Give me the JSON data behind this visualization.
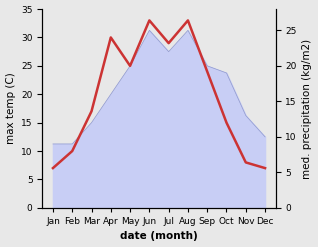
{
  "months": [
    "Jan",
    "Feb",
    "Mar",
    "Apr",
    "May",
    "Jun",
    "Jul",
    "Aug",
    "Sep",
    "Oct",
    "Nov",
    "Dec"
  ],
  "temp": [
    7,
    10,
    17,
    30,
    25,
    33,
    29,
    33,
    24,
    15,
    8,
    7
  ],
  "precip": [
    9,
    9,
    12,
    16,
    20,
    25,
    22,
    25,
    20,
    19,
    13,
    10
  ],
  "temp_color": "#cc3333",
  "precip_fill_color": "#c8cef5",
  "precip_line_color": "#9099cc",
  "temp_ylim": [
    0,
    35
  ],
  "temp_yticks": [
    0,
    5,
    10,
    15,
    20,
    25,
    30,
    35
  ],
  "precip_ylim": [
    0,
    28
  ],
  "precip_yticks": [
    0,
    5,
    10,
    15,
    20,
    25
  ],
  "xlabel": "date (month)",
  "ylabel_left": "max temp (C)",
  "ylabel_right": "med. precipitation (kg/m2)",
  "bg_color": "#e8e8e8",
  "label_fontsize": 7.5,
  "tick_fontsize": 6.5
}
